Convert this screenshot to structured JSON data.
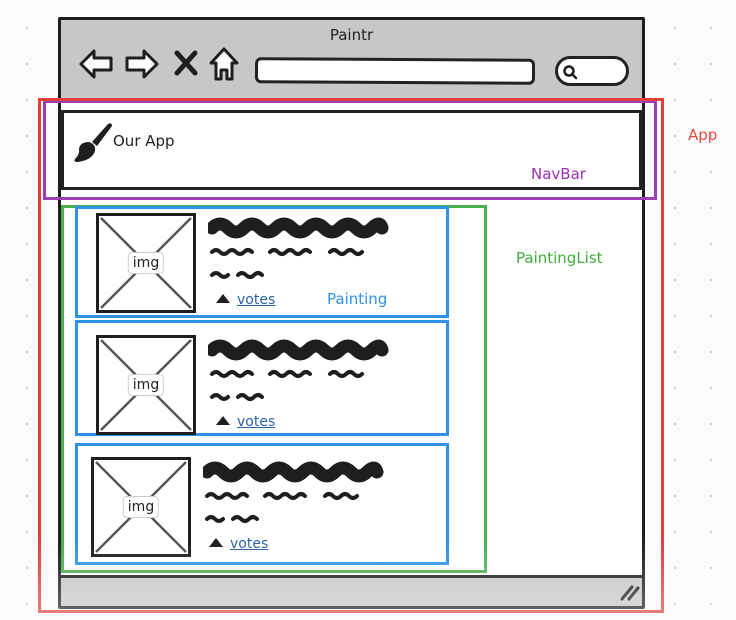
{
  "window": {
    "title": "Paintr"
  },
  "toolbar": {
    "back_icon": "back-arrow-icon",
    "forward_icon": "forward-arrow-icon",
    "close_icon": "close-x-icon",
    "home_icon": "home-icon",
    "search_icon": "search-icon"
  },
  "navbar": {
    "app_name": "Our App",
    "logo_icon": "paintbrush-icon"
  },
  "labels": {
    "app": "App",
    "navbar": "NavBar",
    "painting_list": "PaintingList",
    "painting": "Painting"
  },
  "colors": {
    "app": "#e0403a",
    "navbar": "#9b3fb5",
    "painting_list": "#4caf50",
    "painting": "#2e93e6"
  },
  "paintings": [
    {
      "image_label": "img",
      "votes_label": "votes",
      "vote_icon": "upvote-triangle-icon"
    },
    {
      "image_label": "img",
      "votes_label": "votes",
      "vote_icon": "upvote-triangle-icon"
    },
    {
      "image_label": "img",
      "votes_label": "votes",
      "vote_icon": "upvote-triangle-icon"
    }
  ]
}
